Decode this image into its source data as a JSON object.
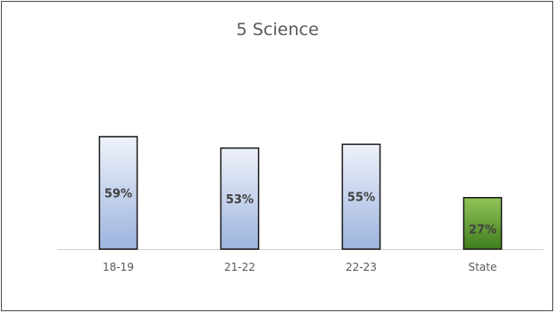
{
  "chart_data": {
    "type": "bar",
    "title": "5 Science",
    "categories": [
      "18-19",
      "21-22",
      "22-23",
      "State"
    ],
    "values": [
      59,
      53,
      55,
      27
    ],
    "data_labels": [
      "59%",
      "53%",
      "55%",
      "27%"
    ],
    "ylim": [
      0,
      100
    ],
    "grid": false,
    "legend": "none",
    "colors": {
      "school_fill_top": "#eef2fa",
      "school_fill_bottom": "#9db4de",
      "state_fill_top": "#93c45a",
      "state_fill_bottom": "#3f7d1c",
      "bar_outline": "#1a1a1a",
      "axis_line": "#d0d0d0",
      "tick_label": "#595959",
      "data_label": "#404040"
    }
  }
}
